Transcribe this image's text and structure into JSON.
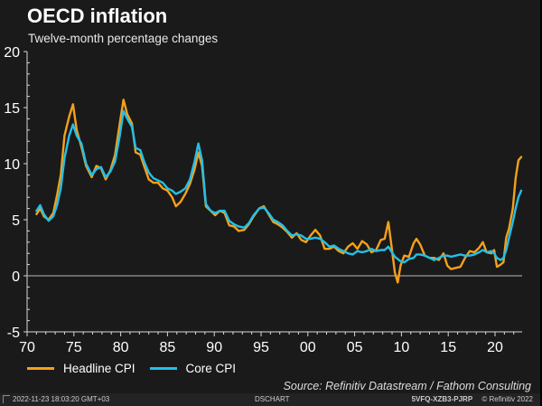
{
  "header": {
    "title": "OECD inflation",
    "subtitle": "Twelve-month percentage changes"
  },
  "legend": [
    {
      "label": "Headline CPI",
      "color": "#f5a01a"
    },
    {
      "label": "Core CPI",
      "color": "#22c0e8"
    }
  ],
  "source": "Source: Refinitiv Datastream / Fathom Consulting",
  "footer": {
    "timestamp": "2022-11-23 18:03:20 GMT+03",
    "app": "DSCHART",
    "code": "5VFQ-XZB3-PJRP",
    "copyright": "© Refinitiv 2022"
  },
  "chart_data": {
    "type": "line",
    "title": "OECD inflation",
    "subtitle": "Twelve-month percentage changes",
    "xlabel": "",
    "ylabel": "",
    "xlim": [
      1970,
      2023
    ],
    "ylim": [
      -5,
      20
    ],
    "x_ticks": [
      1970,
      1975,
      1980,
      1985,
      1990,
      1995,
      2000,
      2005,
      2010,
      2015,
      2020
    ],
    "x_tick_labels": [
      "70",
      "75",
      "80",
      "85",
      "90",
      "95",
      "00",
      "05",
      "10",
      "15",
      "20"
    ],
    "y_ticks": [
      -5,
      0,
      5,
      10,
      15,
      20
    ],
    "y_tick_labels": [
      "-5",
      "0",
      "5",
      "10",
      "15",
      "20"
    ],
    "zero_line": true,
    "grid": false,
    "legend_position": "bottom-left",
    "series": [
      {
        "name": "Headline CPI",
        "color": "#f5a01a",
        "points": [
          [
            1971.0,
            5.5
          ],
          [
            1971.4,
            6.0
          ],
          [
            1971.8,
            5.3
          ],
          [
            1972.3,
            5.0
          ],
          [
            1972.8,
            5.6
          ],
          [
            1973.2,
            7.2
          ],
          [
            1973.6,
            9.0
          ],
          [
            1974.0,
            12.5
          ],
          [
            1974.5,
            14.2
          ],
          [
            1974.9,
            15.3
          ],
          [
            1975.3,
            13.0
          ],
          [
            1975.8,
            11.5
          ],
          [
            1976.3,
            9.8
          ],
          [
            1976.9,
            8.8
          ],
          [
            1977.4,
            9.8
          ],
          [
            1977.9,
            9.6
          ],
          [
            1978.4,
            8.6
          ],
          [
            1978.9,
            9.4
          ],
          [
            1979.4,
            10.8
          ],
          [
            1979.9,
            13.6
          ],
          [
            1980.3,
            15.7
          ],
          [
            1980.7,
            14.4
          ],
          [
            1981.2,
            13.6
          ],
          [
            1981.6,
            11.0
          ],
          [
            1982.1,
            10.8
          ],
          [
            1982.5,
            9.8
          ],
          [
            1983.0,
            8.6
          ],
          [
            1983.5,
            8.3
          ],
          [
            1984.0,
            8.3
          ],
          [
            1984.5,
            7.8
          ],
          [
            1985.0,
            7.6
          ],
          [
            1985.5,
            7.0
          ],
          [
            1985.9,
            6.2
          ],
          [
            1986.4,
            6.6
          ],
          [
            1986.9,
            7.3
          ],
          [
            1987.4,
            8.2
          ],
          [
            1987.9,
            9.5
          ],
          [
            1988.3,
            11.0
          ],
          [
            1988.7,
            9.8
          ],
          [
            1989.1,
            6.2
          ],
          [
            1989.6,
            5.8
          ],
          [
            1990.1,
            5.4
          ],
          [
            1990.6,
            5.8
          ],
          [
            1991.1,
            5.6
          ],
          [
            1991.6,
            4.5
          ],
          [
            1992.1,
            4.4
          ],
          [
            1992.6,
            4.0
          ],
          [
            1993.2,
            4.1
          ],
          [
            1993.7,
            4.6
          ],
          [
            1994.2,
            5.3
          ],
          [
            1994.8,
            6.0
          ],
          [
            1995.3,
            6.2
          ],
          [
            1995.8,
            5.5
          ],
          [
            1996.3,
            4.8
          ],
          [
            1996.8,
            4.6
          ],
          [
            1997.3,
            4.3
          ],
          [
            1997.8,
            3.9
          ],
          [
            1998.3,
            3.4
          ],
          [
            1998.8,
            3.8
          ],
          [
            1999.3,
            3.2
          ],
          [
            1999.8,
            3.0
          ],
          [
            2000.3,
            3.6
          ],
          [
            2000.8,
            4.1
          ],
          [
            2001.3,
            3.6
          ],
          [
            2001.8,
            2.4
          ],
          [
            2002.3,
            2.4
          ],
          [
            2002.8,
            2.6
          ],
          [
            2003.3,
            2.2
          ],
          [
            2003.8,
            2.0
          ],
          [
            2004.3,
            2.6
          ],
          [
            2004.8,
            2.9
          ],
          [
            2005.3,
            2.4
          ],
          [
            2005.8,
            3.1
          ],
          [
            2006.3,
            2.8
          ],
          [
            2006.8,
            2.1
          ],
          [
            2007.3,
            2.3
          ],
          [
            2007.8,
            3.2
          ],
          [
            2008.2,
            3.3
          ],
          [
            2008.6,
            4.8
          ],
          [
            2008.9,
            2.9
          ],
          [
            2009.3,
            0.3
          ],
          [
            2009.6,
            -0.6
          ],
          [
            2009.9,
            0.9
          ],
          [
            2010.3,
            1.8
          ],
          [
            2010.8,
            1.7
          ],
          [
            2011.3,
            2.9
          ],
          [
            2011.6,
            3.3
          ],
          [
            2012.0,
            2.8
          ],
          [
            2012.5,
            1.8
          ],
          [
            2013.0,
            1.6
          ],
          [
            2013.5,
            1.6
          ],
          [
            2014.0,
            1.4
          ],
          [
            2014.5,
            2.0
          ],
          [
            2014.9,
            0.9
          ],
          [
            2015.3,
            0.6
          ],
          [
            2015.8,
            0.7
          ],
          [
            2016.3,
            0.8
          ],
          [
            2016.8,
            1.6
          ],
          [
            2017.3,
            2.2
          ],
          [
            2017.8,
            2.1
          ],
          [
            2018.3,
            2.5
          ],
          [
            2018.7,
            3.0
          ],
          [
            2019.1,
            2.1
          ],
          [
            2019.6,
            2.0
          ],
          [
            2019.9,
            2.3
          ],
          [
            2020.2,
            0.8
          ],
          [
            2020.6,
            1.0
          ],
          [
            2020.9,
            1.2
          ],
          [
            2021.2,
            3.4
          ],
          [
            2021.5,
            4.2
          ],
          [
            2021.9,
            6.0
          ],
          [
            2022.2,
            8.7
          ],
          [
            2022.5,
            10.3
          ],
          [
            2022.8,
            10.6
          ]
        ]
      },
      {
        "name": "Core CPI",
        "color": "#22c0e8",
        "points": [
          [
            1971.0,
            5.8
          ],
          [
            1971.4,
            6.3
          ],
          [
            1971.8,
            5.5
          ],
          [
            1972.3,
            4.9
          ],
          [
            1972.8,
            5.3
          ],
          [
            1973.2,
            6.3
          ],
          [
            1973.6,
            7.8
          ],
          [
            1974.0,
            10.5
          ],
          [
            1974.5,
            12.5
          ],
          [
            1974.9,
            13.5
          ],
          [
            1975.3,
            12.5
          ],
          [
            1975.8,
            11.8
          ],
          [
            1976.3,
            10.0
          ],
          [
            1976.9,
            9.0
          ],
          [
            1977.4,
            9.5
          ],
          [
            1977.9,
            9.7
          ],
          [
            1978.4,
            8.8
          ],
          [
            1978.9,
            9.3
          ],
          [
            1979.4,
            10.2
          ],
          [
            1979.9,
            12.5
          ],
          [
            1980.3,
            14.7
          ],
          [
            1980.7,
            14.0
          ],
          [
            1981.2,
            13.3
          ],
          [
            1981.6,
            11.4
          ],
          [
            1982.1,
            11.2
          ],
          [
            1982.5,
            10.2
          ],
          [
            1983.0,
            9.2
          ],
          [
            1983.5,
            8.7
          ],
          [
            1984.0,
            8.5
          ],
          [
            1984.5,
            8.3
          ],
          [
            1985.0,
            7.8
          ],
          [
            1985.5,
            7.6
          ],
          [
            1985.9,
            7.3
          ],
          [
            1986.4,
            7.5
          ],
          [
            1986.9,
            7.8
          ],
          [
            1987.4,
            8.6
          ],
          [
            1987.9,
            10.2
          ],
          [
            1988.3,
            11.8
          ],
          [
            1988.7,
            10.3
          ],
          [
            1989.1,
            6.4
          ],
          [
            1989.6,
            5.8
          ],
          [
            1990.1,
            5.6
          ],
          [
            1990.6,
            5.8
          ],
          [
            1991.1,
            5.8
          ],
          [
            1991.6,
            4.9
          ],
          [
            1992.1,
            4.6
          ],
          [
            1992.6,
            4.4
          ],
          [
            1993.2,
            4.3
          ],
          [
            1993.7,
            4.7
          ],
          [
            1994.2,
            5.4
          ],
          [
            1994.8,
            6.0
          ],
          [
            1995.3,
            6.1
          ],
          [
            1995.8,
            5.6
          ],
          [
            1996.3,
            5.0
          ],
          [
            1996.8,
            4.8
          ],
          [
            1997.3,
            4.5
          ],
          [
            1997.8,
            4.0
          ],
          [
            1998.3,
            3.6
          ],
          [
            1998.8,
            3.7
          ],
          [
            1999.3,
            3.6
          ],
          [
            1999.8,
            3.3
          ],
          [
            2000.3,
            3.3
          ],
          [
            2000.8,
            3.4
          ],
          [
            2001.3,
            3.3
          ],
          [
            2001.8,
            3.0
          ],
          [
            2002.3,
            2.6
          ],
          [
            2002.8,
            2.7
          ],
          [
            2003.3,
            2.4
          ],
          [
            2003.8,
            2.2
          ],
          [
            2004.3,
            2.0
          ],
          [
            2004.8,
            1.9
          ],
          [
            2005.3,
            2.2
          ],
          [
            2005.8,
            2.1
          ],
          [
            2006.3,
            2.2
          ],
          [
            2006.8,
            2.4
          ],
          [
            2007.3,
            2.2
          ],
          [
            2007.8,
            2.3
          ],
          [
            2008.2,
            2.3
          ],
          [
            2008.6,
            2.6
          ],
          [
            2008.9,
            2.2
          ],
          [
            2009.3,
            1.7
          ],
          [
            2009.6,
            1.5
          ],
          [
            2009.9,
            1.3
          ],
          [
            2010.3,
            1.2
          ],
          [
            2010.8,
            1.5
          ],
          [
            2011.3,
            1.6
          ],
          [
            2011.6,
            1.9
          ],
          [
            2012.0,
            1.9
          ],
          [
            2012.5,
            1.8
          ],
          [
            2013.0,
            1.6
          ],
          [
            2013.5,
            1.4
          ],
          [
            2014.0,
            1.6
          ],
          [
            2014.5,
            1.8
          ],
          [
            2014.9,
            1.8
          ],
          [
            2015.3,
            1.7
          ],
          [
            2015.8,
            1.8
          ],
          [
            2016.3,
            1.9
          ],
          [
            2016.8,
            1.8
          ],
          [
            2017.3,
            1.8
          ],
          [
            2017.8,
            1.9
          ],
          [
            2018.3,
            2.1
          ],
          [
            2018.7,
            2.3
          ],
          [
            2019.1,
            2.1
          ],
          [
            2019.6,
            2.2
          ],
          [
            2019.9,
            2.0
          ],
          [
            2020.2,
            1.6
          ],
          [
            2020.6,
            1.4
          ],
          [
            2020.9,
            1.6
          ],
          [
            2021.2,
            2.3
          ],
          [
            2021.5,
            3.4
          ],
          [
            2021.9,
            4.8
          ],
          [
            2022.2,
            6.0
          ],
          [
            2022.5,
            7.0
          ],
          [
            2022.8,
            7.6
          ]
        ]
      }
    ]
  }
}
